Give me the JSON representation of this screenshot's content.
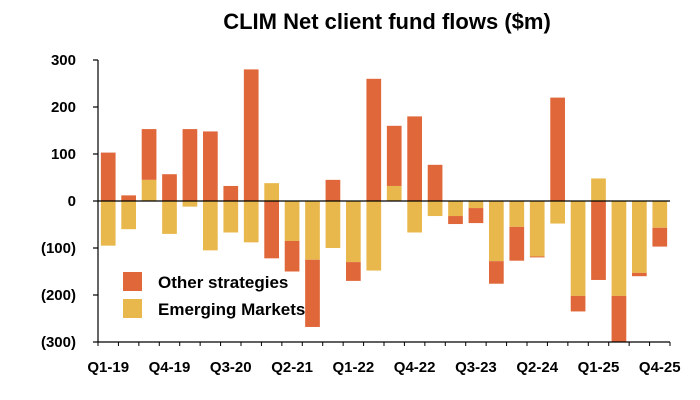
{
  "chart_data": {
    "type": "bar",
    "stacked": true,
    "title": "CLIM Net client fund flows ($m)",
    "xlabel": "",
    "ylabel": "",
    "ylim": [
      -300,
      300
    ],
    "yticks": [
      300,
      200,
      100,
      0,
      -100,
      -200,
      -300
    ],
    "ytick_labels": [
      "300",
      "200",
      "100",
      "0",
      "(100)",
      "(200)",
      "(300)"
    ],
    "xtick_labels": [
      "Q1-19",
      "Q4-19",
      "Q3-20",
      "Q2-21",
      "Q1-22",
      "Q4-22",
      "Q3-23",
      "Q2-24",
      "Q1-25",
      "Q4-25"
    ],
    "grid": false,
    "legend_position": "bottom-left",
    "categories": [
      "Q1-19",
      "Q2-19",
      "Q3-19",
      "Q4-19",
      "Q1-20",
      "Q2-20",
      "Q3-20",
      "Q4-20",
      "Q1-21",
      "Q2-21",
      "Q3-21",
      "Q4-21",
      "Q1-22",
      "Q2-22",
      "Q3-22",
      "Q4-22",
      "Q1-23",
      "Q2-23",
      "Q3-23",
      "Q4-23",
      "Q1-24",
      "Q2-24",
      "Q3-24",
      "Q4-24",
      "Q1-25",
      "Q2-25",
      "Q3-25",
      "Q4-25"
    ],
    "series": [
      {
        "name": "Emerging Markets",
        "color": "#E8B84D",
        "values": [
          -95,
          -60,
          45,
          -70,
          -12,
          -105,
          -67,
          -88,
          38,
          -85,
          -125,
          -100,
          -130,
          -148,
          32,
          -67,
          -32,
          -32,
          -15,
          -128,
          -55,
          -118,
          -48,
          -202,
          48,
          -202,
          -153,
          -57
        ]
      },
      {
        "name": "Other strategies",
        "color": "#E0673A",
        "values": [
          103,
          12,
          108,
          57,
          153,
          148,
          32,
          280,
          -122,
          -65,
          -143,
          45,
          -40,
          260,
          128,
          180,
          77,
          -17,
          -32,
          -48,
          -72,
          -2,
          220,
          -33,
          -168,
          -98,
          -7,
          -40
        ]
      }
    ]
  }
}
